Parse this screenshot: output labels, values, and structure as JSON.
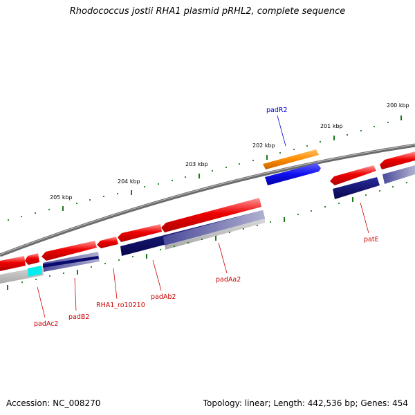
{
  "title": "Rhodococcus jostii RHA1 plasmid pRHL2, complete sequence",
  "footer": {
    "accession": "Accession: NC_008270",
    "summary": "Topology: linear; Length: 442,536 bp; Genes: 454"
  },
  "scale_labels": [
    "200 kbp",
    "201 kbp",
    "202 kbp",
    "203 kbp",
    "204 kbp",
    "205 kbp"
  ],
  "gene_labels": {
    "padR2": "padR2",
    "patE": "patE",
    "padAa2": "padAa2",
    "padAb2": "padAb2",
    "RHA1_ro10210": "RHA1_ro10210",
    "padB2": "padB2",
    "padAc2": "padAc2"
  },
  "colors": {
    "gene_red": "#ee0000",
    "cds_navy": "#0a0a6e",
    "padR2_gene": "#ff8c00",
    "padR2_cds": "#1010ee",
    "cyan": "#00eeee",
    "backbone": "#7a7a7a",
    "tick_green": "#1a7a1a",
    "label_red": "#cc0000",
    "label_blue": "#0000cc"
  }
}
